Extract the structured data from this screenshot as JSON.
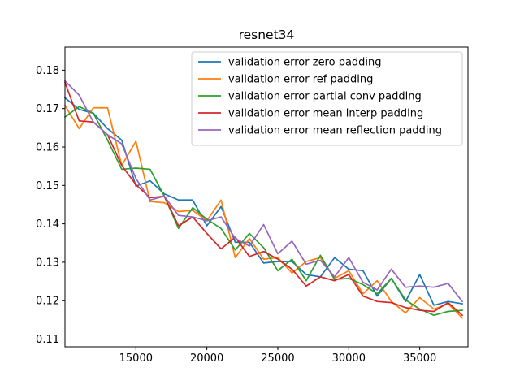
{
  "chart_data": {
    "type": "line",
    "title": "resnet34",
    "xlabel": "",
    "ylabel": "",
    "xlim": [
      10000,
      38400
    ],
    "ylim": [
      0.108,
      0.186
    ],
    "xticks": [
      15000,
      20000,
      25000,
      30000,
      35000
    ],
    "xtick_labels": [
      "15000",
      "20000",
      "25000",
      "30000",
      "35000"
    ],
    "yticks": [
      0.11,
      0.12,
      0.13,
      0.14,
      0.15,
      0.16,
      0.17,
      0.18
    ],
    "ytick_labels": [
      "0.11",
      "0.12",
      "0.13",
      "0.14",
      "0.15",
      "0.16",
      "0.17",
      "0.18"
    ],
    "grid": false,
    "legend_position": "top-right",
    "x": [
      10000,
      11000,
      12000,
      13000,
      14000,
      15000,
      16000,
      17000,
      18000,
      19000,
      20000,
      21000,
      22000,
      23000,
      24000,
      25000,
      26000,
      27000,
      28000,
      29000,
      30000,
      31000,
      32000,
      33000,
      34000,
      35000,
      36000,
      37000,
      38000
    ],
    "series": [
      {
        "name": "validation error zero padding",
        "color": "#1f77b4",
        "values": [
          0.1728,
          0.1698,
          0.1688,
          0.1648,
          0.1618,
          0.1498,
          0.1512,
          0.1478,
          0.1462,
          0.1462,
          0.1395,
          0.1445,
          0.1352,
          0.1352,
          0.1298,
          0.1302,
          0.1302,
          0.1268,
          0.1262,
          0.1312,
          0.1282,
          0.1278,
          0.1212,
          0.1258,
          0.1198,
          0.1268,
          0.1188,
          0.1198,
          0.1192
        ]
      },
      {
        "name": "validation error ref padding",
        "color": "#ff7f0e",
        "values": [
          0.1708,
          0.1648,
          0.1702,
          0.1702,
          0.1552,
          0.1615,
          0.1458,
          0.1455,
          0.1432,
          0.1435,
          0.1408,
          0.1462,
          0.1312,
          0.1362,
          0.1308,
          0.1312,
          0.1272,
          0.1302,
          0.1312,
          0.1258,
          0.1278,
          0.1218,
          0.1252,
          0.1198,
          0.1168,
          0.1208,
          0.1178,
          0.1192,
          0.1155
        ]
      },
      {
        "name": "validation error partial conv padding",
        "color": "#2ca02c",
        "values": [
          0.1678,
          0.1705,
          0.1688,
          0.1618,
          0.1542,
          0.1545,
          0.1542,
          0.1472,
          0.1388,
          0.1442,
          0.1412,
          0.1388,
          0.1332,
          0.1375,
          0.1338,
          0.1278,
          0.1308,
          0.1252,
          0.1318,
          0.1255,
          0.1258,
          0.1242,
          0.1218,
          0.1258,
          0.1202,
          0.1178,
          0.1162,
          0.1172,
          0.1175
        ]
      },
      {
        "name": "validation error mean interp padding",
        "color": "#d62728",
        "values": [
          0.1768,
          0.1668,
          0.1665,
          0.1632,
          0.1552,
          0.1502,
          0.1468,
          0.1472,
          0.1395,
          0.1418,
          0.1375,
          0.1335,
          0.1365,
          0.1315,
          0.1328,
          0.1308,
          0.1282,
          0.1238,
          0.1262,
          0.1252,
          0.1268,
          0.1212,
          0.1198,
          0.1195,
          0.1182,
          0.1175,
          0.1172,
          0.1195,
          0.1162
        ]
      },
      {
        "name": "validation error mean reflection padding",
        "color": "#9467bd",
        "values": [
          0.1772,
          0.1735,
          0.1665,
          0.1632,
          0.1608,
          0.1518,
          0.1462,
          0.1472,
          0.1422,
          0.1418,
          0.1408,
          0.1418,
          0.1362,
          0.1342,
          0.1398,
          0.1322,
          0.1355,
          0.1295,
          0.1305,
          0.1262,
          0.1312,
          0.1248,
          0.1228,
          0.1282,
          0.1235,
          0.1238,
          0.1235,
          0.1245,
          0.1198
        ]
      }
    ]
  }
}
